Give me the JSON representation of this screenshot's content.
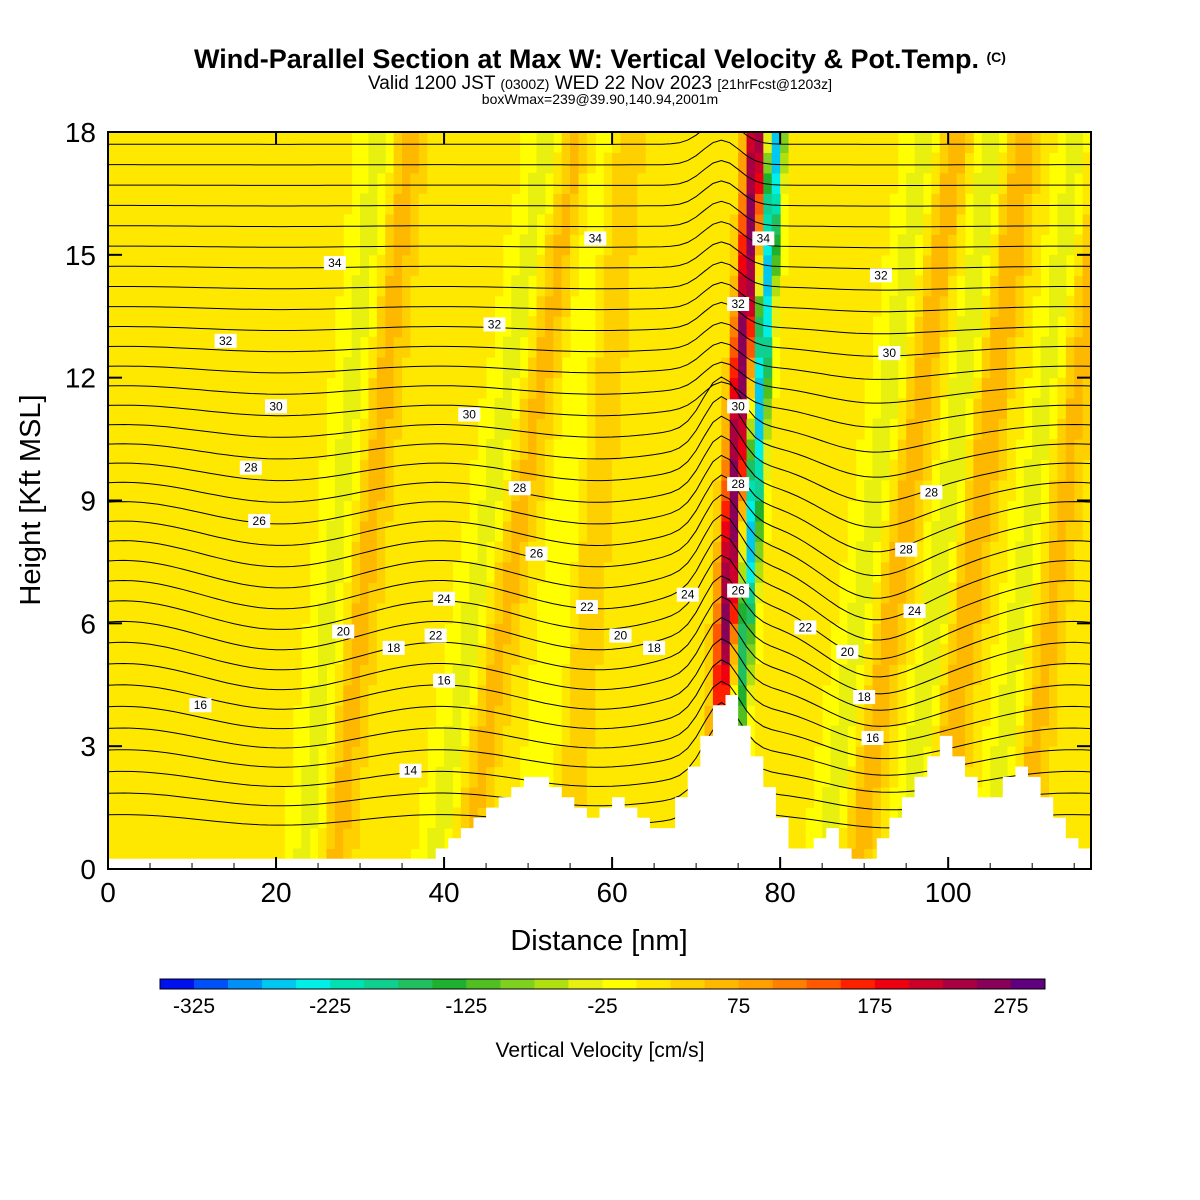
{
  "title": {
    "main": "Wind-Parallel Section at Max W: Vertical Velocity & Pot.Temp.",
    "copyright": "(C)",
    "valid_prefix": "Valid 1200 JST",
    "valid_utc": "(0300Z)",
    "valid_date": "WED 22 Nov 2023",
    "forecast": "[21hrFcst@1203z]",
    "box": "boxWmax=239@39.90,140.94,2001m"
  },
  "chart_data": {
    "type": "heatmap",
    "xlabel": "Distance [nm]",
    "ylabel": "Height [Kft MSL]",
    "xlim": [
      0,
      117
    ],
    "ylim": [
      0,
      18
    ],
    "xticks": [
      0,
      20,
      40,
      60,
      80,
      100
    ],
    "yticks": [
      0,
      3,
      6,
      9,
      12,
      15,
      18
    ],
    "colorbar": {
      "label": "Vertical Velocity [cm/s]",
      "ticks": [
        -325,
        -225,
        -125,
        -25,
        75,
        175,
        275
      ],
      "levels": [
        -350,
        -325,
        -300,
        -275,
        -250,
        -225,
        -200,
        -175,
        -150,
        -125,
        -100,
        -75,
        -50,
        -25,
        0,
        25,
        50,
        75,
        100,
        125,
        150,
        175,
        200,
        225,
        250,
        275,
        300
      ],
      "colors": [
        "#0010ee",
        "#0050f8",
        "#0090f8",
        "#00c8f0",
        "#00f0e8",
        "#00e0b0",
        "#10d090",
        "#20c060",
        "#20b030",
        "#50c020",
        "#80d020",
        "#b0e010",
        "#e8f010",
        "#ffff00",
        "#ffe800",
        "#ffd000",
        "#ffb800",
        "#ffa000",
        "#ff8000",
        "#ff5800",
        "#ff2000",
        "#ee0010",
        "#cc0028",
        "#a80040",
        "#880058",
        "#600080"
      ]
    },
    "theta_contours": [
      {
        "label": "14",
        "x": 36,
        "y": 2.4
      },
      {
        "label": "16",
        "x": 11,
        "y": 4.0
      },
      {
        "label": "16",
        "x": 40,
        "y": 4.6
      },
      {
        "label": "16",
        "x": 91,
        "y": 3.2
      },
      {
        "label": "18",
        "x": 34,
        "y": 5.4
      },
      {
        "label": "18",
        "x": 65,
        "y": 5.4
      },
      {
        "label": "18",
        "x": 90,
        "y": 4.2
      },
      {
        "label": "20",
        "x": 28,
        "y": 5.8
      },
      {
        "label": "20",
        "x": 61,
        "y": 5.7
      },
      {
        "label": "20",
        "x": 88,
        "y": 5.3
      },
      {
        "label": "22",
        "x": 39,
        "y": 5.7
      },
      {
        "label": "22",
        "x": 57,
        "y": 6.4
      },
      {
        "label": "22",
        "x": 83,
        "y": 5.9
      },
      {
        "label": "24",
        "x": 40,
        "y": 6.6
      },
      {
        "label": "24",
        "x": 69,
        "y": 6.7
      },
      {
        "label": "24",
        "x": 96,
        "y": 6.3
      },
      {
        "label": "26",
        "x": 18,
        "y": 8.5
      },
      {
        "label": "26",
        "x": 51,
        "y": 7.7
      },
      {
        "label": "26",
        "x": 75,
        "y": 6.8
      },
      {
        "label": "28",
        "x": 17,
        "y": 9.8
      },
      {
        "label": "28",
        "x": 49,
        "y": 9.3
      },
      {
        "label": "28",
        "x": 75,
        "y": 9.4
      },
      {
        "label": "28",
        "x": 95,
        "y": 7.8
      },
      {
        "label": "28",
        "x": 98,
        "y": 9.2
      },
      {
        "label": "30",
        "x": 20,
        "y": 11.3
      },
      {
        "label": "30",
        "x": 43,
        "y": 11.1
      },
      {
        "label": "30",
        "x": 75,
        "y": 11.3
      },
      {
        "label": "30",
        "x": 93,
        "y": 12.6
      },
      {
        "label": "32",
        "x": 14,
        "y": 12.9
      },
      {
        "label": "32",
        "x": 46,
        "y": 13.3
      },
      {
        "label": "32",
        "x": 75,
        "y": 13.8
      },
      {
        "label": "32",
        "x": 92,
        "y": 14.5
      },
      {
        "label": "34",
        "x": 27,
        "y": 14.8
      },
      {
        "label": "34",
        "x": 58,
        "y": 15.4
      },
      {
        "label": "34",
        "x": 78,
        "y": 15.4
      }
    ]
  }
}
